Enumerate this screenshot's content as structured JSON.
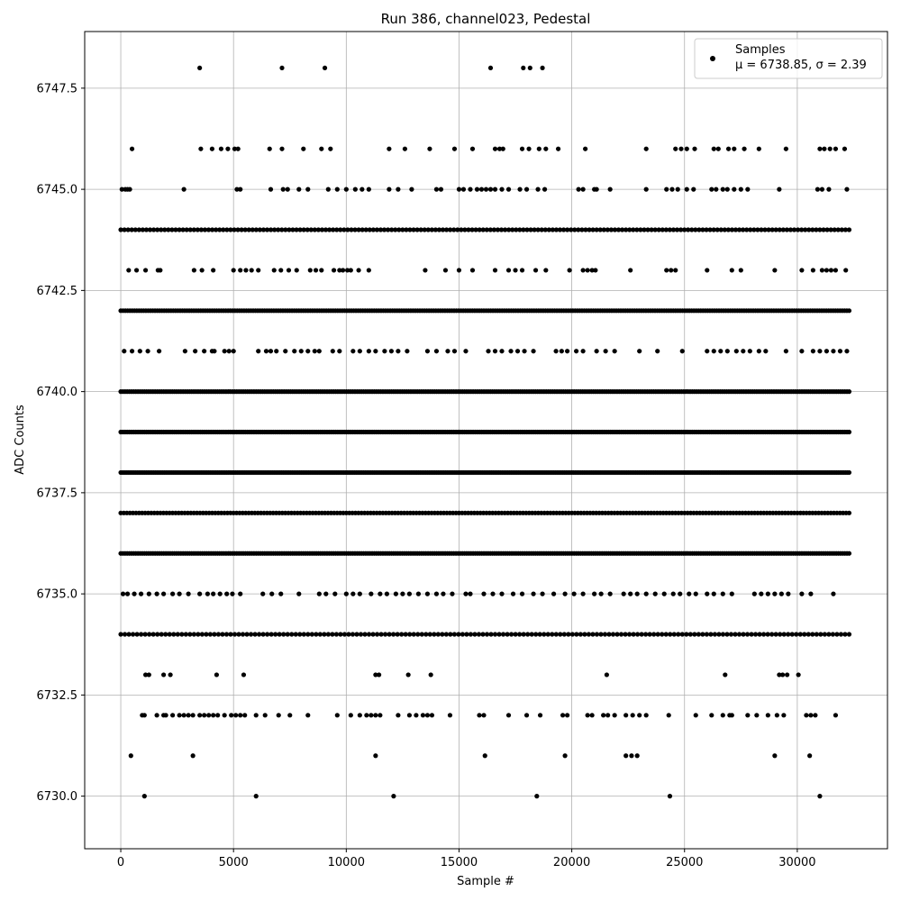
{
  "chart_data": {
    "type": "scatter",
    "title": "Run 386, channel023, Pedestal",
    "xlabel": "Sample #",
    "ylabel": "ADC Counts",
    "xlim": [
      -1600,
      34000
    ],
    "ylim": [
      6728.7,
      6748.9
    ],
    "x_ticks": [
      0,
      5000,
      10000,
      15000,
      20000,
      25000,
      30000
    ],
    "x_tick_labels": [
      "0",
      "5000",
      "10000",
      "15000",
      "20000",
      "25000",
      "30000"
    ],
    "y_ticks": [
      6730.0,
      6732.5,
      6735.0,
      6737.5,
      6740.0,
      6742.5,
      6745.0,
      6747.5
    ],
    "y_tick_labels": [
      "6730.0",
      "6732.5",
      "6735.0",
      "6737.5",
      "6740.0",
      "6742.5",
      "6745.0",
      "6747.5"
    ],
    "grid": true,
    "legend_position": "top-right",
    "marker_color": "#000000",
    "series": [
      {
        "name": "Samples",
        "sublabel": "μ = 6738.85, σ = 2.39",
        "x_range": [
          0,
          32300
        ],
        "levels": [
          {
            "y": 6748,
            "x": [
              3500,
              7150,
              9050,
              16400,
              17850,
              18150,
              18700
            ]
          },
          {
            "y": 6746,
            "x": [
              500,
              3550,
              4050,
              4450,
              4750,
              5050,
              5200,
              6600,
              7150,
              8100,
              8900,
              9300,
              11900,
              12600,
              13700,
              14800,
              15600,
              16600,
              16800,
              16950,
              17800,
              18100,
              18550,
              18850,
              19400,
              20600,
              23300,
              24600,
              24850,
              25100,
              25450,
              26300,
              26500,
              26950,
              27200,
              27650,
              28300,
              29500,
              31000,
              31200,
              31450,
              31700,
              32100
            ]
          },
          {
            "y": 6745,
            "x": [
              50,
              200,
              300,
              400,
              2800,
              5150,
              5300,
              6650,
              7200,
              7400,
              7900,
              8300,
              9200,
              9600,
              10000,
              10400,
              10700,
              11000,
              11900,
              12300,
              12900,
              14000,
              14200,
              15000,
              15200,
              15500,
              15800,
              16000,
              16200,
              16400,
              16600,
              16900,
              17200,
              17700,
              18000,
              18500,
              18800,
              20300,
              20500,
              21000,
              21100,
              21700,
              23300,
              24200,
              24450,
              24700,
              25100,
              25400,
              26200,
              26400,
              26700,
              26900,
              27200,
              27500,
              27800,
              29200,
              30900,
              31100,
              31400,
              32200
            ]
          },
          {
            "y": 6744,
            "x_dense": [
              0,
              32300
            ],
            "n": 200
          },
          {
            "y": 6743,
            "x": [
              350,
              700,
              1100,
              1650,
              1750,
              3250,
              3600,
              4100,
              5000,
              5300,
              5550,
              5800,
              6100,
              6800,
              7100,
              7450,
              7800,
              8400,
              8650,
              8900,
              9450,
              9700,
              9850,
              10050,
              10200,
              10550,
              11000,
              13500,
              14400,
              15000,
              15600,
              16600,
              17200,
              17500,
              17800,
              18400,
              18850,
              19900,
              20500,
              20700,
              20900,
              21050,
              22600,
              24200,
              24400,
              24600,
              26000,
              27100,
              27500,
              29000,
              30200,
              30700,
              31100,
              31300,
              31500,
              31700,
              32150
            ]
          },
          {
            "y": 6742,
            "x_dense": [
              0,
              32300
            ],
            "n": 320
          },
          {
            "y": 6741,
            "x": [
              150,
              500,
              850,
              1200,
              1700,
              2850,
              3300,
              3700,
              4050,
              4150,
              4600,
              4800,
              5000,
              6100,
              6450,
              6650,
              6900,
              7300,
              7700,
              8000,
              8300,
              8600,
              8800,
              9400,
              9700,
              10300,
              10600,
              11000,
              11300,
              11700,
              12000,
              12300,
              12700,
              13600,
              14000,
              14500,
              14800,
              15300,
              16300,
              16600,
              16900,
              17300,
              17600,
              17900,
              18300,
              19300,
              19550,
              19800,
              20200,
              20500,
              21100,
              21500,
              21900,
              23000,
              23800,
              24900,
              26000,
              26300,
              26600,
              26900,
              27300,
              27600,
              27900,
              28300,
              28600,
              29500,
              30200,
              30700,
              31000,
              31300,
              31600,
              31900,
              32200
            ]
          },
          {
            "y": 6740,
            "x_dense": [
              0,
              32300
            ],
            "n": 340
          },
          {
            "y": 6739,
            "x_dense": [
              0,
              32300
            ],
            "n": 340
          },
          {
            "y": 6738,
            "x_dense": [
              0,
              32300
            ],
            "n": 400
          },
          {
            "y": 6737,
            "x_dense": [
              0,
              32300
            ],
            "n": 240
          },
          {
            "y": 6736,
            "x_dense": [
              0,
              32300
            ],
            "n": 340
          },
          {
            "y": 6735,
            "x": [
              100,
              300,
              600,
              900,
              1250,
              1600,
              1900,
              2300,
              2600,
              3000,
              3500,
              3850,
              4100,
              4400,
              4700,
              4950,
              5300,
              6300,
              6700,
              7100,
              7900,
              8800,
              9100,
              9500,
              10000,
              10300,
              10600,
              11100,
              11500,
              11800,
              12200,
              12500,
              12800,
              13200,
              13600,
              14000,
              14300,
              14700,
              15300,
              15500,
              16100,
              16500,
              16900,
              17400,
              17800,
              18300,
              18700,
              19200,
              19700,
              20100,
              20500,
              21000,
              21300,
              21700,
              22300,
              22600,
              22900,
              23300,
              23700,
              24100,
              24500,
              24800,
              25200,
              25500,
              26000,
              26300,
              26700,
              27100,
              28100,
              28400,
              28700,
              29000,
              29300,
              29600,
              30200,
              30600,
              31600
            ]
          },
          {
            "y": 6734,
            "x_dense": [
              0,
              32300
            ],
            "n": 180
          },
          {
            "y": 6733,
            "x": [
              1100,
              1250,
              1900,
              2200,
              4250,
              5450,
              11300,
              11450,
              12750,
              13750,
              21550,
              26800,
              29200,
              29350,
              29550,
              30050
            ]
          },
          {
            "y": 6732,
            "x": [
              950,
              1050,
              1600,
              1900,
              2000,
              2300,
              2600,
              2800,
              3000,
              3200,
              3500,
              3700,
              3900,
              4100,
              4300,
              4600,
              4900,
              5100,
              5300,
              5500,
              6000,
              6400,
              7000,
              7500,
              8300,
              9600,
              10200,
              10600,
              10900,
              11100,
              11300,
              11500,
              12300,
              12800,
              13100,
              13400,
              13600,
              13800,
              14600,
              15900,
              16100,
              17200,
              18000,
              18600,
              19600,
              19800,
              20700,
              20900,
              21400,
              21600,
              21900,
              22400,
              22700,
              23000,
              23300,
              24300,
              25500,
              26200,
              26700,
              27000,
              27100,
              27800,
              28200,
              28700,
              29100,
              29400,
              30400,
              30600,
              30800,
              31700
            ]
          },
          {
            "y": 6731,
            "x": [
              450,
              3200,
              11300,
              16150,
              19700,
              22400,
              22650,
              22900,
              29000,
              30550
            ]
          },
          {
            "y": 6730,
            "x": [
              1050,
              6000,
              12100,
              18450,
              24350,
              31000
            ]
          }
        ]
      }
    ]
  }
}
